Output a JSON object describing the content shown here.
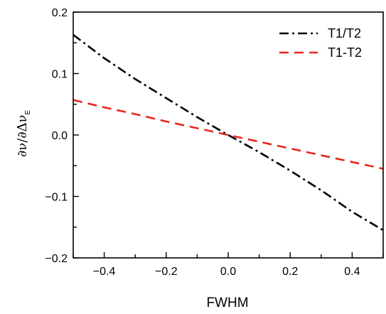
{
  "chart_data": {
    "type": "line",
    "title": "",
    "xlabel": "FWHM",
    "ylabel": {
      "main": "∂ν/∂Δν",
      "subscript": "E"
    },
    "xlim": [
      -0.5,
      0.5
    ],
    "ylim": [
      -0.2,
      0.2
    ],
    "x_ticks": [
      -0.4,
      -0.2,
      0.0,
      0.2,
      0.4
    ],
    "x_tick_labels": [
      "-0.4",
      "-0.2",
      "0.0",
      "0.2",
      "0.4"
    ],
    "y_ticks": [
      -0.2,
      -0.1,
      0.0,
      0.1,
      0.2
    ],
    "y_tick_labels": [
      "-0.2",
      "-0.1",
      "0.0",
      "0.1",
      "0.2"
    ],
    "grid": false,
    "legend_position": "top-right",
    "series": [
      {
        "name": "T1/T2",
        "color": "#000000",
        "dash": "dash-dot",
        "x": [
          -0.5,
          -0.4,
          -0.3,
          -0.2,
          -0.1,
          0.0,
          0.1,
          0.2,
          0.3,
          0.4,
          0.5
        ],
        "y": [
          0.163,
          0.125,
          0.091,
          0.06,
          0.029,
          0.0,
          -0.028,
          -0.058,
          -0.09,
          -0.125,
          -0.155
        ]
      },
      {
        "name": "T1-T2",
        "color": "#e8271d",
        "dash": "dash",
        "x": [
          -0.5,
          -0.4,
          -0.3,
          -0.2,
          -0.1,
          0.0,
          0.1,
          0.2,
          0.3,
          0.4,
          0.5
        ],
        "y": [
          0.057,
          0.045,
          0.034,
          0.022,
          0.011,
          0.0,
          -0.011,
          -0.022,
          -0.033,
          -0.044,
          -0.055
        ]
      }
    ]
  }
}
